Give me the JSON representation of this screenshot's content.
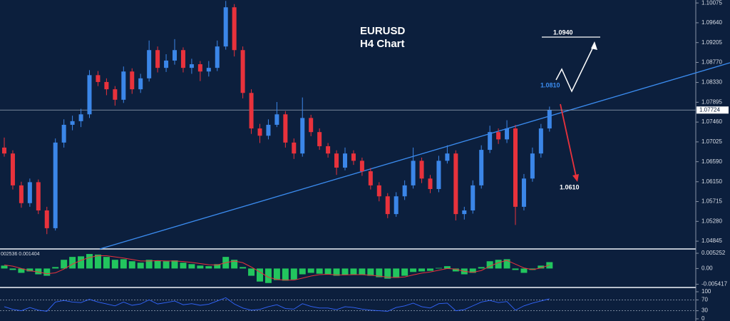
{
  "chart_data": [
    {
      "type": "candlestick",
      "title": "EURUSD",
      "subtitle": "H4 Chart",
      "ylim": [
        1.0469,
        1.1014
      ],
      "yticks": [
        1.10075,
        {
          "value": 1.0964,
          "label": "1.09640"
        },
        1.09205,
        {
          "value": 1.0877,
          "label": "1.08770"
        },
        {
          "value": 1.0833,
          "label": "1.08330"
        },
        1.07895,
        {
          "value": 1.0746,
          "label": "1.07460"
        },
        1.07025,
        {
          "value": 1.0659,
          "label": "1.06590"
        },
        {
          "value": 1.0615,
          "label": "1.06150"
        },
        1.05715,
        {
          "value": 1.0528,
          "label": "1.05280"
        },
        1.04845
      ],
      "last_price": 1.07724,
      "up_color": "#3b86e8",
      "down_color": "#e8323c",
      "annotations": [
        "1.0940",
        "1.0810",
        "1.0610"
      ],
      "candles": [
        [
          1.069,
          1.0712,
          1.067,
          1.0677
        ],
        [
          1.0677,
          1.0684,
          1.0598,
          1.0607
        ],
        [
          1.0607,
          1.0615,
          1.0558,
          1.0568
        ],
        [
          1.0568,
          1.0622,
          1.056,
          1.0614
        ],
        [
          1.0614,
          1.062,
          1.0544,
          1.0552
        ],
        [
          1.0552,
          1.056,
          1.05,
          1.0513
        ],
        [
          1.0513,
          1.071,
          1.0508,
          1.0701
        ],
        [
          1.0701,
          1.0752,
          1.069,
          1.074
        ],
        [
          1.074,
          1.076,
          1.0728,
          1.0748
        ],
        [
          1.0748,
          1.0775,
          1.0735,
          1.0763
        ],
        [
          1.0763,
          1.086,
          1.0755,
          1.0849
        ],
        [
          1.0849,
          1.0858,
          1.0825,
          1.0834
        ],
        [
          1.0834,
          1.0842,
          1.0805,
          1.0818
        ],
        [
          1.0818,
          1.0825,
          1.0782,
          1.0795
        ],
        [
          1.0795,
          1.0868,
          1.0788,
          1.0857
        ],
        [
          1.0857,
          1.0864,
          1.0808,
          1.0818
        ],
        [
          1.0818,
          1.0852,
          1.081,
          1.0842
        ],
        [
          1.0842,
          1.0925,
          1.0835,
          1.0904
        ],
        [
          1.0904,
          1.0912,
          1.0855,
          1.0865
        ],
        [
          1.0865,
          1.0895,
          1.0856,
          1.0881
        ],
        [
          1.0881,
          1.0928,
          1.0872,
          1.0904
        ],
        [
          1.0904,
          1.091,
          1.0855,
          1.0865
        ],
        [
          1.0865,
          1.0885,
          1.0852,
          1.0873
        ],
        [
          1.0873,
          1.088,
          1.0836,
          1.0857
        ],
        [
          1.0857,
          1.088,
          1.0846,
          1.0865
        ],
        [
          1.0865,
          1.0925,
          1.0858,
          1.0912
        ],
        [
          1.0912,
          1.1012,
          1.0905,
          1.0998
        ],
        [
          1.0998,
          1.1005,
          1.089,
          1.0904
        ],
        [
          1.0904,
          1.0912,
          1.0798,
          1.081
        ],
        [
          1.081,
          1.0818,
          1.072,
          1.0732
        ],
        [
          1.0732,
          1.0742,
          1.07,
          1.0716
        ],
        [
          1.0716,
          1.0752,
          1.0708,
          1.074
        ],
        [
          1.074,
          1.079,
          1.0735,
          1.0763
        ],
        [
          1.0763,
          1.077,
          1.069,
          1.0701
        ],
        [
          1.0701,
          1.071,
          1.0665,
          1.0677
        ],
        [
          1.0677,
          1.08,
          1.067,
          1.0755
        ],
        [
          1.0755,
          1.0762,
          1.0715,
          1.0724
        ],
        [
          1.0724,
          1.0732,
          1.0685,
          1.0693
        ],
        [
          1.0693,
          1.07,
          1.0668,
          1.0677
        ],
        [
          1.0677,
          1.0684,
          1.063,
          1.0646
        ],
        [
          1.0646,
          1.069,
          1.064,
          1.0677
        ],
        [
          1.0677,
          1.0684,
          1.0652,
          1.0661
        ],
        [
          1.0661,
          1.0668,
          1.0628,
          1.0638
        ],
        [
          1.0638,
          1.0645,
          1.0598,
          1.0607
        ],
        [
          1.0607,
          1.0614,
          1.0572,
          1.0583
        ],
        [
          1.0583,
          1.059,
          1.0535,
          1.0544
        ],
        [
          1.0544,
          1.0592,
          1.0538,
          1.0583
        ],
        [
          1.0583,
          1.0618,
          1.0575,
          1.0607
        ],
        [
          1.0607,
          1.069,
          1.06,
          1.0661
        ],
        [
          1.0661,
          1.0668,
          1.0612,
          1.0622
        ],
        [
          1.0622,
          1.063,
          1.059,
          1.0599
        ],
        [
          1.0599,
          1.0672,
          1.0592,
          1.0661
        ],
        [
          1.0661,
          1.0695,
          1.0655,
          1.0677
        ],
        [
          1.0677,
          1.0684,
          1.053,
          1.0544
        ],
        [
          1.0544,
          1.056,
          1.0532,
          1.0552
        ],
        [
          1.0552,
          1.0618,
          1.0545,
          1.0607
        ],
        [
          1.0607,
          1.0695,
          1.06,
          1.0685
        ],
        [
          1.0685,
          1.0738,
          1.0678,
          1.0724
        ],
        [
          1.0724,
          1.0732,
          1.0698,
          1.0708
        ],
        [
          1.0708,
          1.075,
          1.07,
          1.0732
        ],
        [
          1.0732,
          1.074,
          1.052,
          1.056
        ],
        [
          1.056,
          1.0632,
          1.0552,
          1.0622
        ],
        [
          1.0622,
          1.069,
          1.0615,
          1.0677
        ],
        [
          1.0677,
          1.0742,
          1.0668,
          1.0732
        ],
        [
          1.0732,
          1.078,
          1.0725,
          1.0772
        ]
      ]
    },
    {
      "type": "macd",
      "title": "002536 0.001404",
      "ylim": [
        -0.0058,
        0.006
      ],
      "yticks": [
        0.005252,
        {
          "value": 0,
          "label": "0.00"
        },
        -0.005417
      ],
      "hist_color": "#22c55e",
      "signal_color": "#e8323c",
      "histogram": [
        0.001,
        -0.0005,
        -0.0015,
        -0.001,
        -0.002,
        -0.0025,
        0.0005,
        0.003,
        0.004,
        0.0042,
        0.005,
        0.0048,
        0.004,
        0.003,
        0.0032,
        0.0025,
        0.002,
        0.003,
        0.0028,
        0.0025,
        0.0028,
        0.002,
        0.0015,
        0.001,
        0.0008,
        0.0015,
        0.004,
        0.003,
        0.0005,
        -0.0025,
        -0.0045,
        -0.005,
        -0.004,
        -0.0042,
        -0.0038,
        -0.002,
        -0.0015,
        -0.0018,
        -0.002,
        -0.0025,
        -0.0022,
        -0.002,
        -0.0022,
        -0.0025,
        -0.003,
        -0.0035,
        -0.0032,
        -0.0025,
        -0.0012,
        -0.001,
        -0.0008,
        0.0002,
        0.0008,
        -0.001,
        -0.002,
        -0.0015,
        0.0005,
        0.0025,
        0.003,
        0.0032,
        -0.0005,
        -0.0015,
        -0.0005,
        0.001,
        0.0022
      ],
      "signal": [
        0.0012,
        0.0008,
        0.0,
        -0.0008,
        -0.0012,
        -0.0018,
        -0.0015,
        -0.0002,
        0.0015,
        0.0028,
        0.0038,
        0.0044,
        0.0044,
        0.004,
        0.0036,
        0.0031,
        0.0026,
        0.0026,
        0.0027,
        0.0026,
        0.0026,
        0.0024,
        0.0021,
        0.0017,
        0.0013,
        0.0012,
        0.002,
        0.0026,
        0.002,
        0.0005,
        -0.0012,
        -0.003,
        -0.0038,
        -0.004,
        -0.004,
        -0.0033,
        -0.0026,
        -0.0021,
        -0.002,
        -0.0022,
        -0.0022,
        -0.0021,
        -0.0021,
        -0.0023,
        -0.0026,
        -0.003,
        -0.0031,
        -0.0029,
        -0.0022,
        -0.0016,
        -0.0012,
        -0.0006,
        0.0,
        -0.0002,
        -0.001,
        -0.0013,
        -0.0007,
        0.0008,
        0.002,
        0.0028,
        0.0015,
        0.0002,
        -0.0004,
        0.0002,
        0.0012
      ]
    },
    {
      "type": "line",
      "ylim": [
        0,
        100
      ],
      "yticks": [
        100,
        70,
        30,
        0
      ],
      "levels": [
        70,
        30
      ],
      "color": "#3366ff",
      "values": [
        45,
        35,
        30,
        42,
        32,
        28,
        62,
        68,
        62,
        60,
        72,
        62,
        55,
        48,
        62,
        50,
        55,
        70,
        55,
        60,
        66,
        52,
        56,
        50,
        54,
        66,
        78,
        55,
        40,
        32,
        35,
        45,
        52,
        38,
        36,
        56,
        46,
        40,
        40,
        34,
        45,
        42,
        36,
        32,
        30,
        28,
        42,
        48,
        58,
        45,
        40,
        56,
        58,
        30,
        34,
        48,
        62,
        68,
        60,
        64,
        32,
        48,
        58,
        66,
        74
      ]
    }
  ]
}
